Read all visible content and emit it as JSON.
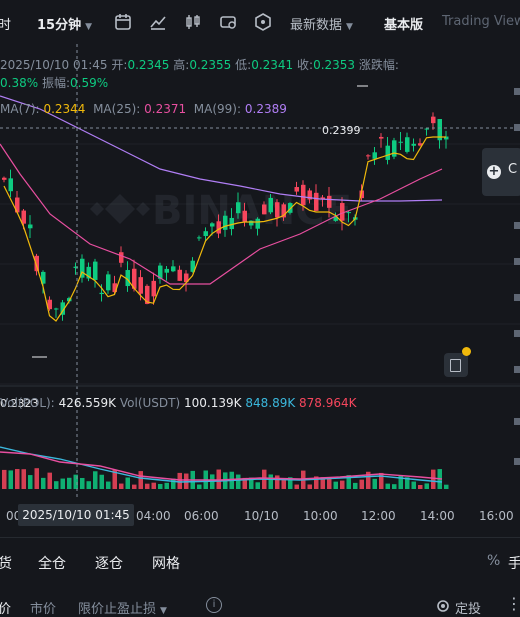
{
  "toolbar": {
    "left_fragment": "时",
    "interval": "15分钟",
    "latest_data": "最新数据",
    "basic_version": "基本版",
    "tradingview": "Trading View"
  },
  "chart_info": {
    "datetime": "2025/10/10 01:45",
    "open_label": "开:",
    "open": "0.2345",
    "high_label": "高:",
    "high": "0.2355",
    "low_label": "低:",
    "low": "0.2341",
    "close_label": "收:",
    "close": "0.2353",
    "change_label": "涨跌幅:",
    "change": "0.38%",
    "amplitude_label": "振幅:",
    "amplitude": "0.59%"
  },
  "ma": {
    "ma7_label": "MA(7):",
    "ma7": "0.2344",
    "ma25_label": "MA(25):",
    "ma25": "0.2371",
    "ma99_label": "MA(99):",
    "ma99": "0.2389"
  },
  "price_markers": {
    "high": "0.2399",
    "low": "0.2323"
  },
  "right_button": {
    "letter": "C"
  },
  "volume_info": {
    "vol_label": "Vol(POL):",
    "vol": "426.559K",
    "usdt_label": "Vol(USDT)",
    "usdt": "100.139K",
    "ma5": "848.89K",
    "ma10": "878.964K"
  },
  "time_axis": {
    "cursor": "2025/10/10 01:45",
    "ticks": [
      "04:00",
      "06:00",
      "10/10",
      "10:00",
      "12:00",
      "14:00",
      "16:00"
    ]
  },
  "tabs": {
    "t1": "货",
    "t2": "全仓",
    "t3": "逐仓",
    "t4": "网格",
    "pct": "%",
    "hand": "手"
  },
  "order": {
    "b0": "价",
    "market": "市价",
    "stop_limit": "限价止盈止损",
    "fixed": "定投"
  },
  "colors": {
    "up": "#0ecb81",
    "down": "#f6465d",
    "ma7": "#f0b90b",
    "ma25": "#e84fa0",
    "ma99": "#b07ef5",
    "bg": "#15171c"
  }
}
